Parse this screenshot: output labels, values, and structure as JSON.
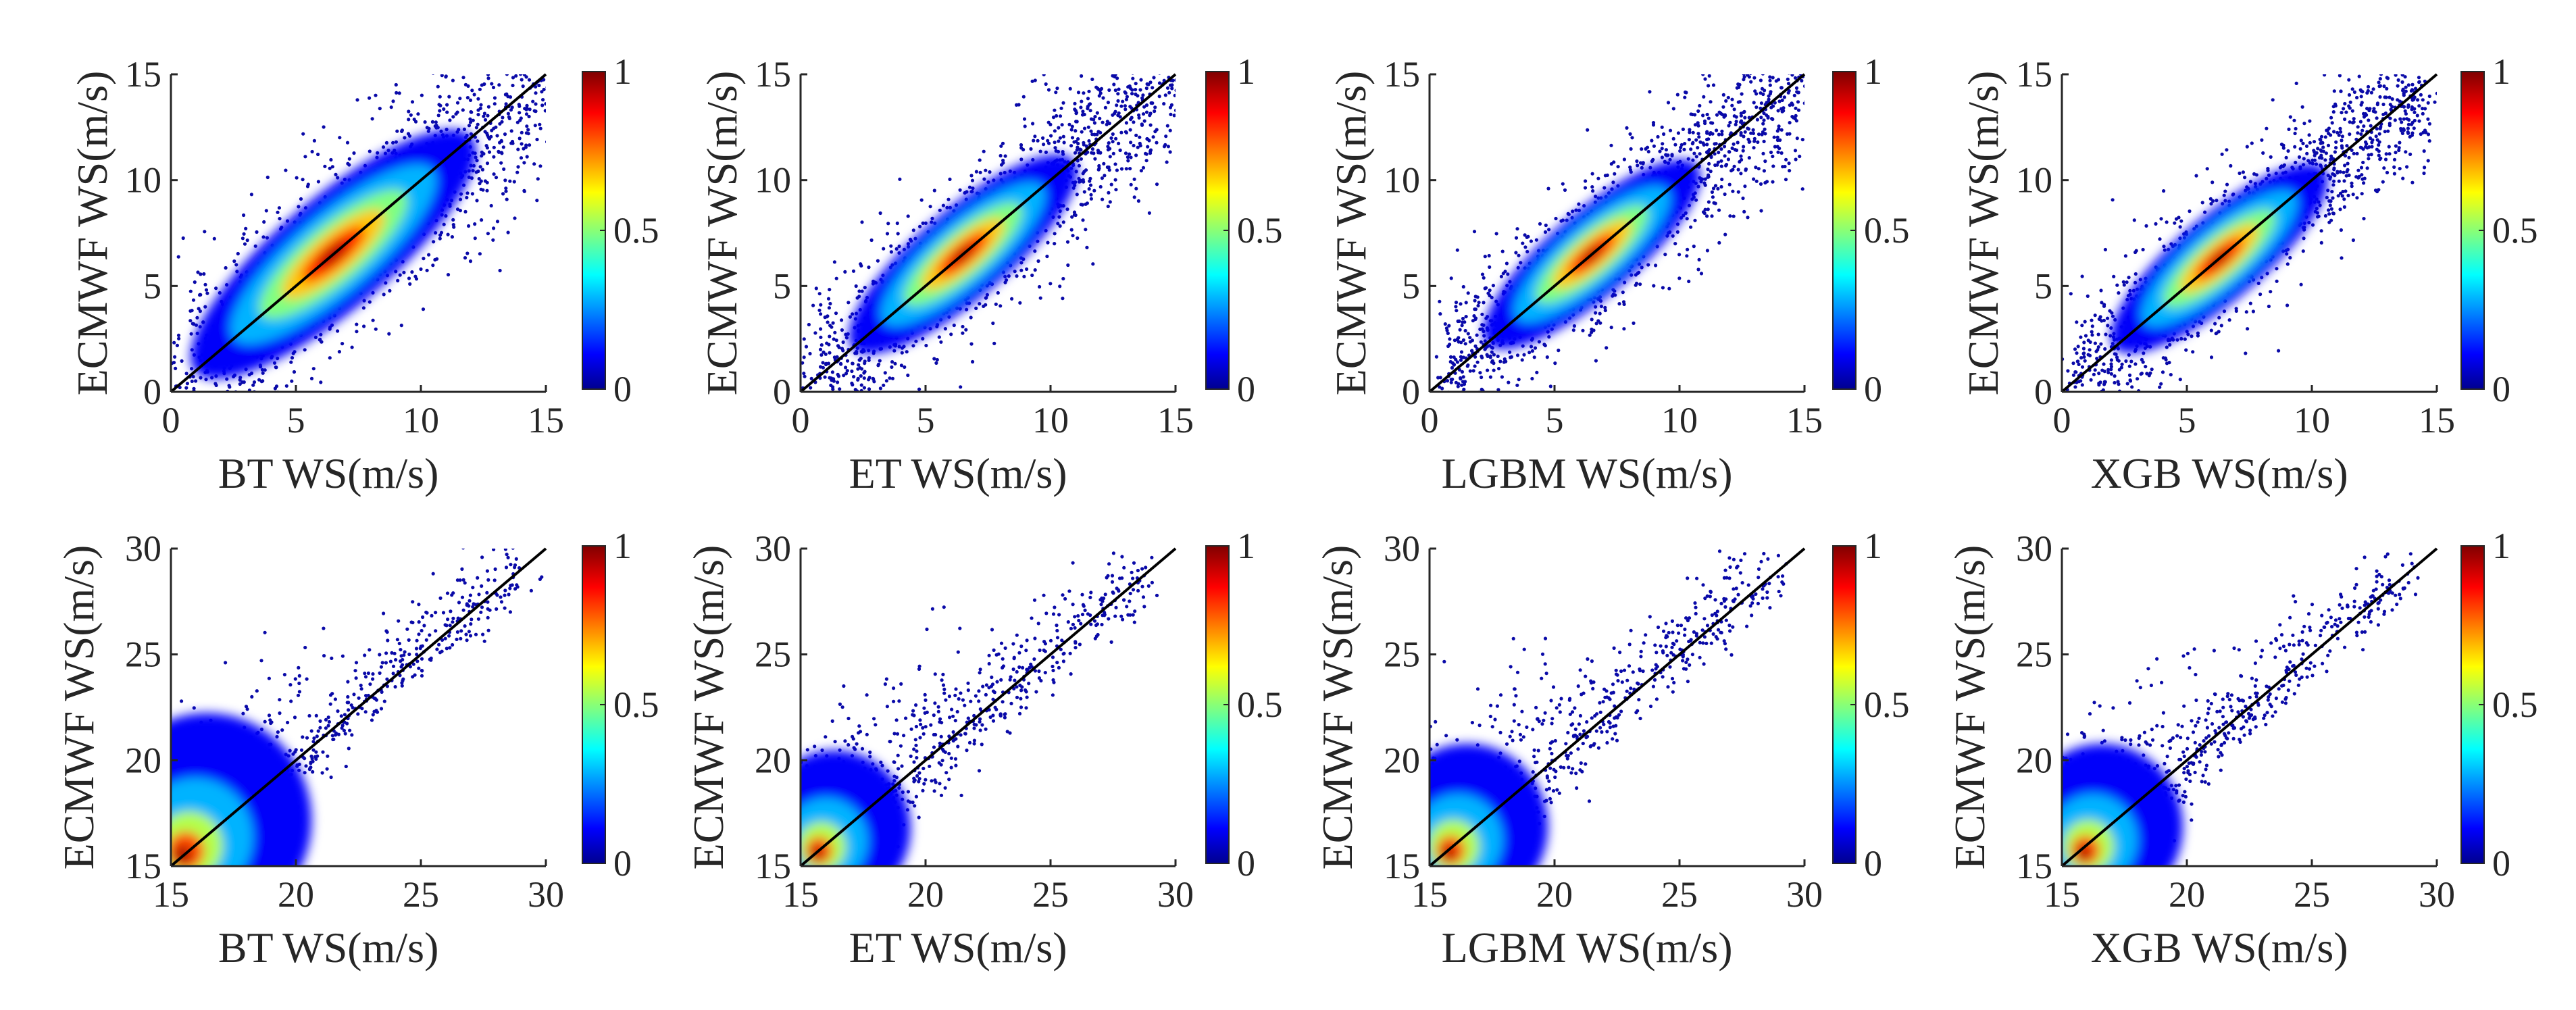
{
  "figure": {
    "description_hidden": false
  },
  "colorbar": {
    "ticks": [
      "0",
      "0.5",
      "1"
    ],
    "min": 0,
    "max": 1,
    "colormap": "jet"
  },
  "chart_data": [
    {
      "type": "scatter",
      "panel": "top-1",
      "xlabel": "BT WS(m/s)",
      "ylabel": "ECMWF WS(m/s)",
      "xlim": [
        0,
        15
      ],
      "ylim": [
        0,
        15
      ],
      "xticks": [
        0,
        5,
        10,
        15
      ],
      "yticks": [
        0,
        5,
        10,
        15
      ],
      "reference_line": "y = x",
      "density_peak": [
        6.5,
        6.5
      ],
      "spread": 2.5,
      "colorbar_range": [
        0,
        1
      ]
    },
    {
      "type": "scatter",
      "panel": "top-2",
      "xlabel": "ET WS(m/s)",
      "ylabel": "ECMWF WS(m/s)",
      "xlim": [
        0,
        15
      ],
      "ylim": [
        0,
        15
      ],
      "xticks": [
        0,
        5,
        10,
        15
      ],
      "yticks": [
        0,
        5,
        10,
        15
      ],
      "reference_line": "y = x",
      "density_peak": [
        6.5,
        6.5
      ],
      "spread": 2.0,
      "colorbar_range": [
        0,
        1
      ]
    },
    {
      "type": "scatter",
      "panel": "top-3",
      "xlabel": "LGBM WS(m/s)",
      "ylabel": "ECMWF WS(m/s)",
      "xlim": [
        0,
        15
      ],
      "ylim": [
        0,
        15
      ],
      "xticks": [
        0,
        5,
        10,
        15
      ],
      "yticks": [
        0,
        5,
        10,
        15
      ],
      "reference_line": "y = x",
      "density_peak": [
        6.5,
        6.5
      ],
      "spread": 1.9,
      "colorbar_range": [
        0,
        1
      ]
    },
    {
      "type": "scatter",
      "panel": "top-4",
      "xlabel": "XGB WS(m/s)",
      "ylabel": "ECMWF WS(m/s)",
      "xlim": [
        0,
        15
      ],
      "ylim": [
        0,
        15
      ],
      "xticks": [
        0,
        5,
        10,
        15
      ],
      "yticks": [
        0,
        5,
        10,
        15
      ],
      "reference_line": "y = x",
      "density_peak": [
        6.3,
        6.3
      ],
      "spread": 1.9,
      "colorbar_range": [
        0,
        1
      ]
    },
    {
      "type": "scatter",
      "panel": "bottom-1",
      "xlabel": "BT WS(m/s)",
      "ylabel": "ECMWF WS(m/s)",
      "xlim": [
        15,
        30
      ],
      "ylim": [
        15,
        30
      ],
      "xticks": [
        15,
        20,
        25,
        30
      ],
      "yticks": [
        15,
        20,
        25,
        30
      ],
      "reference_line": "y = x",
      "density_peak": [
        15.4,
        15.4
      ],
      "spread": 2.2,
      "colorbar_range": [
        0,
        1
      ]
    },
    {
      "type": "scatter",
      "panel": "bottom-2",
      "xlabel": "ET WS(m/s)",
      "ylabel": "ECMWF WS(m/s)",
      "xlim": [
        15,
        30
      ],
      "ylim": [
        15,
        30
      ],
      "xticks": [
        15,
        20,
        25,
        30
      ],
      "yticks": [
        15,
        20,
        25,
        30
      ],
      "reference_line": "y = x",
      "density_peak": [
        15.6,
        15.5
      ],
      "spread": 1.6,
      "colorbar_range": [
        0,
        1
      ]
    },
    {
      "type": "scatter",
      "panel": "bottom-3",
      "xlabel": "LGBM WS(m/s)",
      "ylabel": "ECMWF WS(m/s)",
      "xlim": [
        15,
        30
      ],
      "ylim": [
        15,
        30
      ],
      "xticks": [
        15,
        20,
        25,
        30
      ],
      "yticks": [
        15,
        20,
        25,
        30
      ],
      "reference_line": "y = x",
      "density_peak": [
        15.7,
        15.5
      ],
      "spread": 1.7,
      "colorbar_range": [
        0,
        1
      ]
    },
    {
      "type": "scatter",
      "panel": "bottom-4",
      "xlabel": "XGB WS(m/s)",
      "ylabel": "ECMWF WS(m/s)",
      "xlim": [
        15,
        30
      ],
      "ylim": [
        15,
        30
      ],
      "xticks": [
        15,
        20,
        25,
        30
      ],
      "yticks": [
        15,
        20,
        25,
        30
      ],
      "reference_line": "y = x",
      "density_peak": [
        15.8,
        15.5
      ],
      "spread": 1.7,
      "colorbar_range": [
        0,
        1
      ]
    }
  ]
}
